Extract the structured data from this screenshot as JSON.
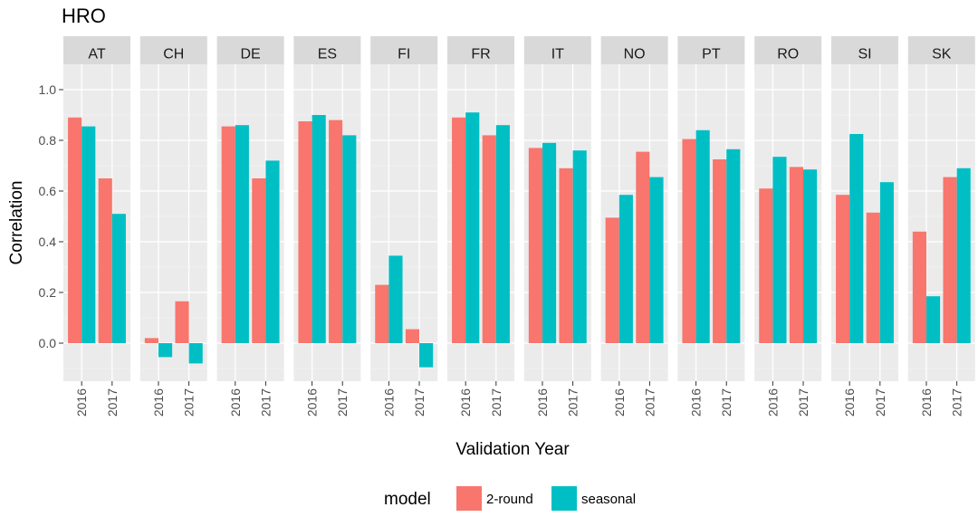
{
  "chart_data": {
    "type": "bar",
    "title": "HRO",
    "xlabel": "Validation Year",
    "ylabel": "Correlation",
    "ylim": [
      -0.15,
      1.1
    ],
    "yticks": [
      "0.0",
      "0.2",
      "0.4",
      "0.6",
      "0.8",
      "1.0"
    ],
    "grid": true,
    "legend_position": "bottom",
    "legend_title": "model",
    "categories": [
      "2016",
      "2017"
    ],
    "series": [
      {
        "name": "2-round",
        "color": "#F8766D"
      },
      {
        "name": "seasonal",
        "color": "#00BFC4"
      }
    ],
    "facets": [
      {
        "label": "AT",
        "values": {
          "2016": [
            0.89,
            0.855
          ],
          "2017": [
            0.65,
            0.51
          ]
        }
      },
      {
        "label": "CH",
        "values": {
          "2016": [
            0.02,
            -0.055
          ],
          "2017": [
            0.165,
            -0.08
          ]
        }
      },
      {
        "label": "DE",
        "values": {
          "2016": [
            0.855,
            0.86
          ],
          "2017": [
            0.65,
            0.72
          ]
        }
      },
      {
        "label": "ES",
        "values": {
          "2016": [
            0.875,
            0.9
          ],
          "2017": [
            0.88,
            0.82
          ]
        }
      },
      {
        "label": "FI",
        "values": {
          "2016": [
            0.23,
            0.345
          ],
          "2017": [
            0.055,
            -0.095
          ]
        }
      },
      {
        "label": "FR",
        "values": {
          "2016": [
            0.89,
            0.91
          ],
          "2017": [
            0.82,
            0.86
          ]
        }
      },
      {
        "label": "IT",
        "values": {
          "2016": [
            0.77,
            0.79
          ],
          "2017": [
            0.69,
            0.76
          ]
        }
      },
      {
        "label": "NO",
        "values": {
          "2016": [
            0.495,
            0.585
          ],
          "2017": [
            0.755,
            0.655
          ]
        }
      },
      {
        "label": "PT",
        "values": {
          "2016": [
            0.805,
            0.84
          ],
          "2017": [
            0.725,
            0.765
          ]
        }
      },
      {
        "label": "RO",
        "values": {
          "2016": [
            0.61,
            0.735
          ],
          "2017": [
            0.695,
            0.685
          ]
        }
      },
      {
        "label": "SI",
        "values": {
          "2016": [
            0.585,
            0.825
          ],
          "2017": [
            0.515,
            0.635
          ]
        }
      },
      {
        "label": "SK",
        "values": {
          "2016": [
            0.44,
            0.185
          ],
          "2017": [
            0.655,
            0.69
          ]
        }
      }
    ]
  }
}
